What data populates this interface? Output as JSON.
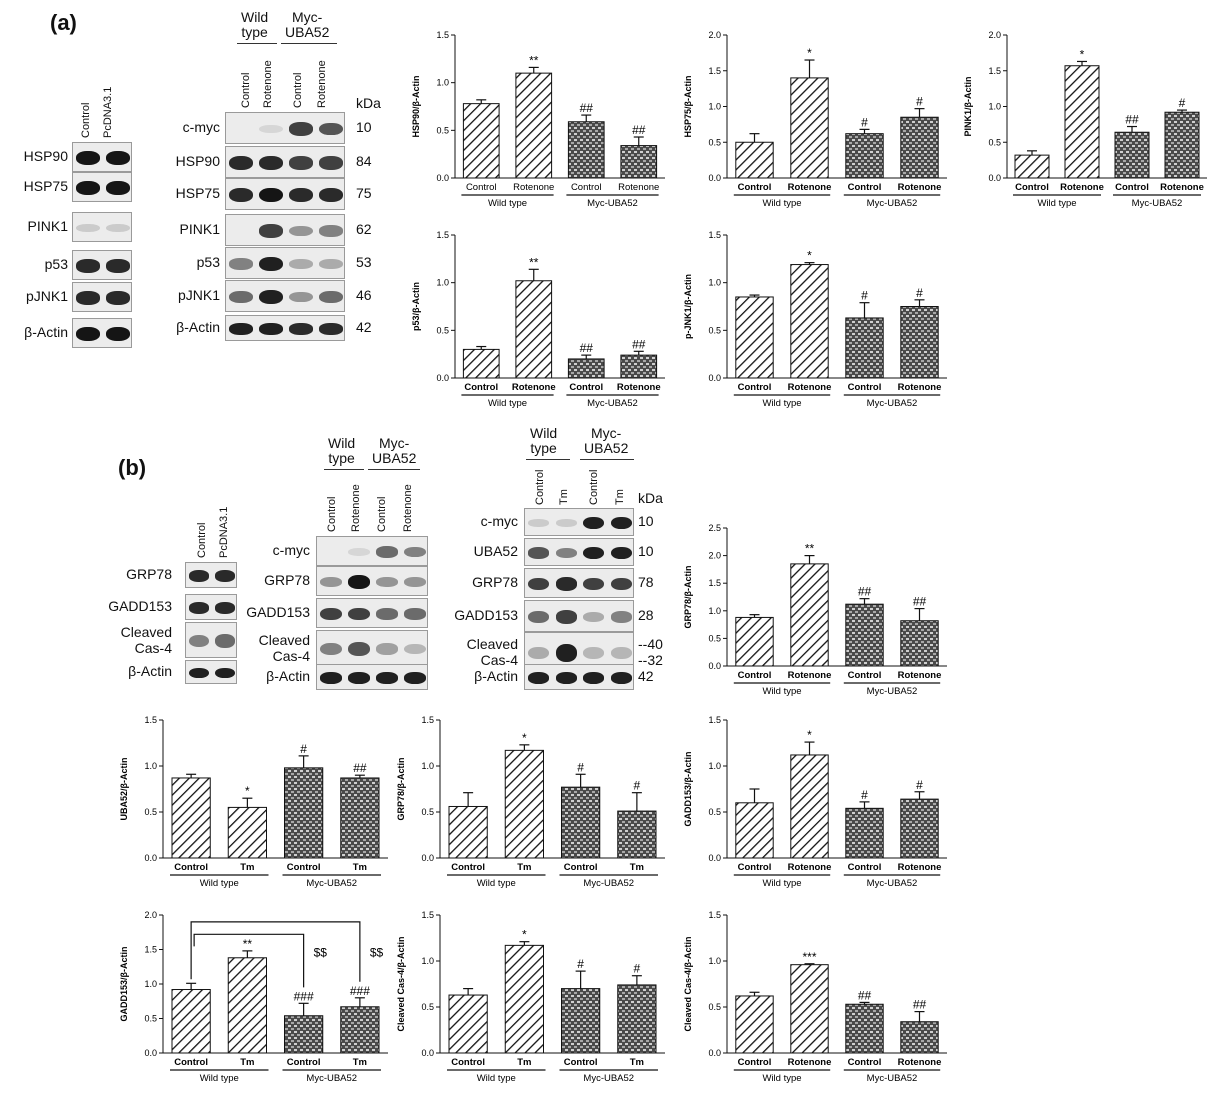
{
  "panel_labels": {
    "a": "(a)",
    "b": "(b)"
  },
  "blots": {
    "a_left": {
      "lanes": [
        "Control",
        "PcDNA3.1"
      ],
      "proteins": [
        "HSP90",
        "HSP75",
        "PINK1",
        "p53",
        "pJNK1",
        "β-Actin"
      ]
    },
    "a_right": {
      "group1": "Wild\ntype",
      "group2": "Myc-\nUBA52",
      "lanes": [
        "Control",
        "Rotenone",
        "Control",
        "Rotenone"
      ],
      "proteins": [
        "c-myc",
        "HSP90",
        "HSP75",
        "PINK1",
        "p53",
        "pJNK1",
        "β-Actin"
      ],
      "kda_header": "kDa",
      "kda": [
        "10",
        "84",
        "75",
        "62",
        "53",
        "46",
        "42"
      ]
    },
    "b_left": {
      "lanes": [
        "Control",
        "PcDNA3.1"
      ],
      "proteins": [
        "GRP78",
        "GADD153",
        "Cleaved\nCas-4",
        "β-Actin"
      ]
    },
    "b_mid": {
      "group1": "Wild\ntype",
      "group2": "Myc-\nUBA52",
      "lanes": [
        "Control",
        "Rotenone",
        "Control",
        "Rotenone"
      ],
      "proteins": [
        "c-myc",
        "GRP78",
        "GADD153",
        "Cleaved\nCas-4",
        "β-Actin"
      ]
    },
    "b_right": {
      "group1": "Wild\ntype",
      "group2": "Myc-\nUBA52",
      "lanes": [
        "Control",
        "Tm",
        "Control",
        "Tm"
      ],
      "proteins": [
        "c-myc",
        "UBA52",
        "GRP78",
        "GADD153",
        "Cleaved\nCas-4",
        "β-Actin"
      ],
      "kda_header": "kDa",
      "kda": [
        "10",
        "10",
        "78",
        "28",
        "--40\n--32",
        "42"
      ]
    }
  },
  "chart_data": [
    {
      "id": "a1",
      "type": "bar",
      "categories": [
        "Control",
        "Rotenone",
        "Control",
        "Rotenone"
      ],
      "groups": [
        "Wild type",
        "Myc-UBA52"
      ],
      "values": [
        0.78,
        1.1,
        0.59,
        0.34
      ],
      "errors": [
        0.04,
        0.06,
        0.07,
        0.09
      ],
      "annotations": [
        "",
        "**",
        "##",
        "##"
      ],
      "ylabel": "HSP90/β-Actin",
      "ylim": [
        0,
        1.5
      ],
      "yticks": [
        "0.0",
        "0.5",
        "1.0",
        "1.5"
      ],
      "bold_labels": false
    },
    {
      "id": "a2",
      "type": "bar",
      "categories": [
        "Control",
        "Rotenone",
        "Control",
        "Rotenone"
      ],
      "groups": [
        "Wild type",
        "Myc-UBA52"
      ],
      "values": [
        0.5,
        1.4,
        0.62,
        0.85
      ],
      "errors": [
        0.12,
        0.25,
        0.06,
        0.12
      ],
      "annotations": [
        "",
        "*",
        "#",
        "#"
      ],
      "ylabel": "HSP75/β-Actin",
      "ylim": [
        0,
        2.0
      ],
      "yticks": [
        "0.0",
        "0.5",
        "1.0",
        "1.5",
        "2.0"
      ],
      "bold_labels": true
    },
    {
      "id": "a3",
      "type": "bar",
      "categories": [
        "Control",
        "Rotenone",
        "Control",
        "Rotenone"
      ],
      "groups": [
        "Wild type",
        "Myc-UBA52"
      ],
      "values": [
        0.32,
        1.57,
        0.64,
        0.92
      ],
      "errors": [
        0.06,
        0.06,
        0.08,
        0.03
      ],
      "annotations": [
        "",
        "*",
        "##",
        "#"
      ],
      "ylabel": "PINK1/β-Actin",
      "ylim": [
        0,
        2.0
      ],
      "yticks": [
        "0.0",
        "0.5",
        "1.0",
        "1.5",
        "2.0"
      ],
      "bold_labels": true
    },
    {
      "id": "a4",
      "type": "bar",
      "categories": [
        "Control",
        "Rotenone",
        "Control",
        "Rotenone"
      ],
      "groups": [
        "Wild type",
        "Myc-UBA52"
      ],
      "values": [
        0.3,
        1.02,
        0.2,
        0.24
      ],
      "errors": [
        0.03,
        0.12,
        0.04,
        0.04
      ],
      "annotations": [
        "",
        "**",
        "##",
        "##"
      ],
      "ylabel": "p53/β-Actin",
      "ylim": [
        0,
        1.5
      ],
      "yticks": [
        "0.0",
        "0.5",
        "1.0",
        "1.5"
      ],
      "bold_labels": true
    },
    {
      "id": "a5",
      "type": "bar",
      "categories": [
        "Control",
        "Rotenone",
        "Control",
        "Rotenone"
      ],
      "groups": [
        "Wild type",
        "Myc-UBA52"
      ],
      "values": [
        0.85,
        1.19,
        0.63,
        0.75
      ],
      "errors": [
        0.02,
        0.02,
        0.16,
        0.07
      ],
      "annotations": [
        "",
        "*",
        "#",
        "#"
      ],
      "ylabel": "p-JNK1/β-Actin",
      "ylim": [
        0,
        1.5
      ],
      "yticks": [
        "0.0",
        "0.5",
        "1.0",
        "1.5"
      ],
      "bold_labels": true
    },
    {
      "id": "b1",
      "type": "bar",
      "categories": [
        "Control",
        "Rotenone",
        "Control",
        "Rotenone"
      ],
      "groups": [
        "Wild type",
        "Myc-UBA52"
      ],
      "values": [
        0.88,
        1.85,
        1.12,
        0.82
      ],
      "errors": [
        0.05,
        0.15,
        0.1,
        0.22
      ],
      "annotations": [
        "",
        "**",
        "##",
        "##"
      ],
      "ylabel": "GRP78/β-Actin",
      "ylim": [
        0,
        2.5
      ],
      "yticks": [
        "0.0",
        "0.5",
        "1.0",
        "1.5",
        "2.0",
        "2.5"
      ],
      "bold_labels": true
    },
    {
      "id": "b2",
      "type": "bar",
      "categories": [
        "Control",
        "Tm",
        "Control",
        "Tm"
      ],
      "groups": [
        "Wild type",
        "Myc-UBA52"
      ],
      "values": [
        0.87,
        0.55,
        0.98,
        0.87
      ],
      "errors": [
        0.04,
        0.1,
        0.13,
        0.03
      ],
      "annotations": [
        "",
        "*",
        "#",
        "##"
      ],
      "ylabel": "UBA52/β-Actin",
      "ylim": [
        0,
        1.5
      ],
      "yticks": [
        "0.0",
        "0.5",
        "1.0",
        "1.5"
      ],
      "bold_labels": true
    },
    {
      "id": "b3",
      "type": "bar",
      "categories": [
        "Control",
        "Tm",
        "Control",
        "Tm"
      ],
      "groups": [
        "Wild type",
        "Myc-UBA52"
      ],
      "values": [
        0.56,
        1.17,
        0.77,
        0.51
      ],
      "errors": [
        0.15,
        0.06,
        0.14,
        0.2
      ],
      "annotations": [
        "",
        "*",
        "#",
        "#"
      ],
      "ylabel": "GRP78/β-Actin",
      "ylim": [
        0,
        1.5
      ],
      "yticks": [
        "0.0",
        "0.5",
        "1.0",
        "1.5"
      ],
      "bold_labels": true
    },
    {
      "id": "b4",
      "type": "bar",
      "categories": [
        "Control",
        "Rotenone",
        "Control",
        "Rotenone"
      ],
      "groups": [
        "Wild type",
        "Myc-UBA52"
      ],
      "values": [
        0.6,
        1.12,
        0.54,
        0.64
      ],
      "errors": [
        0.15,
        0.14,
        0.07,
        0.08
      ],
      "annotations": [
        "",
        "*",
        "#",
        "#"
      ],
      "ylabel": "GADD153/β-Actin",
      "ylim": [
        0,
        1.5
      ],
      "yticks": [
        "0.0",
        "0.5",
        "1.0",
        "1.5"
      ],
      "bold_labels": true
    },
    {
      "id": "b5",
      "type": "bar",
      "categories": [
        "Control",
        "Tm",
        "Control",
        "Tm"
      ],
      "groups": [
        "Wild type",
        "Myc-UBA52"
      ],
      "values": [
        0.92,
        1.38,
        0.54,
        0.67
      ],
      "errors": [
        0.09,
        0.1,
        0.18,
        0.13
      ],
      "annotations": [
        "",
        "**",
        "###",
        "###"
      ],
      "brackets": {
        "label1": "$$",
        "label2": "$$"
      },
      "ylabel": "GADD153/β-Actin",
      "ylim": [
        0,
        2.0
      ],
      "yticks": [
        "0.0",
        "0.5",
        "1.0",
        "1.5",
        "2.0"
      ],
      "bold_labels": true
    },
    {
      "id": "b6",
      "type": "bar",
      "categories": [
        "Control",
        "Tm",
        "Control",
        "Tm"
      ],
      "groups": [
        "Wild type",
        "Myc-UBA52"
      ],
      "values": [
        0.63,
        1.17,
        0.7,
        0.74
      ],
      "errors": [
        0.07,
        0.04,
        0.19,
        0.1
      ],
      "annotations": [
        "",
        "*",
        "#",
        "#"
      ],
      "ylabel": "Cleaved Cas-4/β-Actin",
      "ylim": [
        0,
        1.5
      ],
      "yticks": [
        "0.0",
        "0.5",
        "1.0",
        "1.5"
      ],
      "bold_labels": true
    },
    {
      "id": "b7",
      "type": "bar",
      "categories": [
        "Control",
        "Rotenone",
        "Control",
        "Rotenone"
      ],
      "groups": [
        "Wild type",
        "Myc-UBA52"
      ],
      "values": [
        0.62,
        0.96,
        0.53,
        0.34
      ],
      "errors": [
        0.04,
        0.01,
        0.02,
        0.11
      ],
      "annotations": [
        "",
        "***",
        "##",
        "##"
      ],
      "ylabel": "Cleaved Cas-4/β-Actin",
      "ylim": [
        0,
        1.5
      ],
      "yticks": [
        "0.0",
        "0.5",
        "1.0",
        "1.5"
      ],
      "bold_labels": true
    }
  ]
}
